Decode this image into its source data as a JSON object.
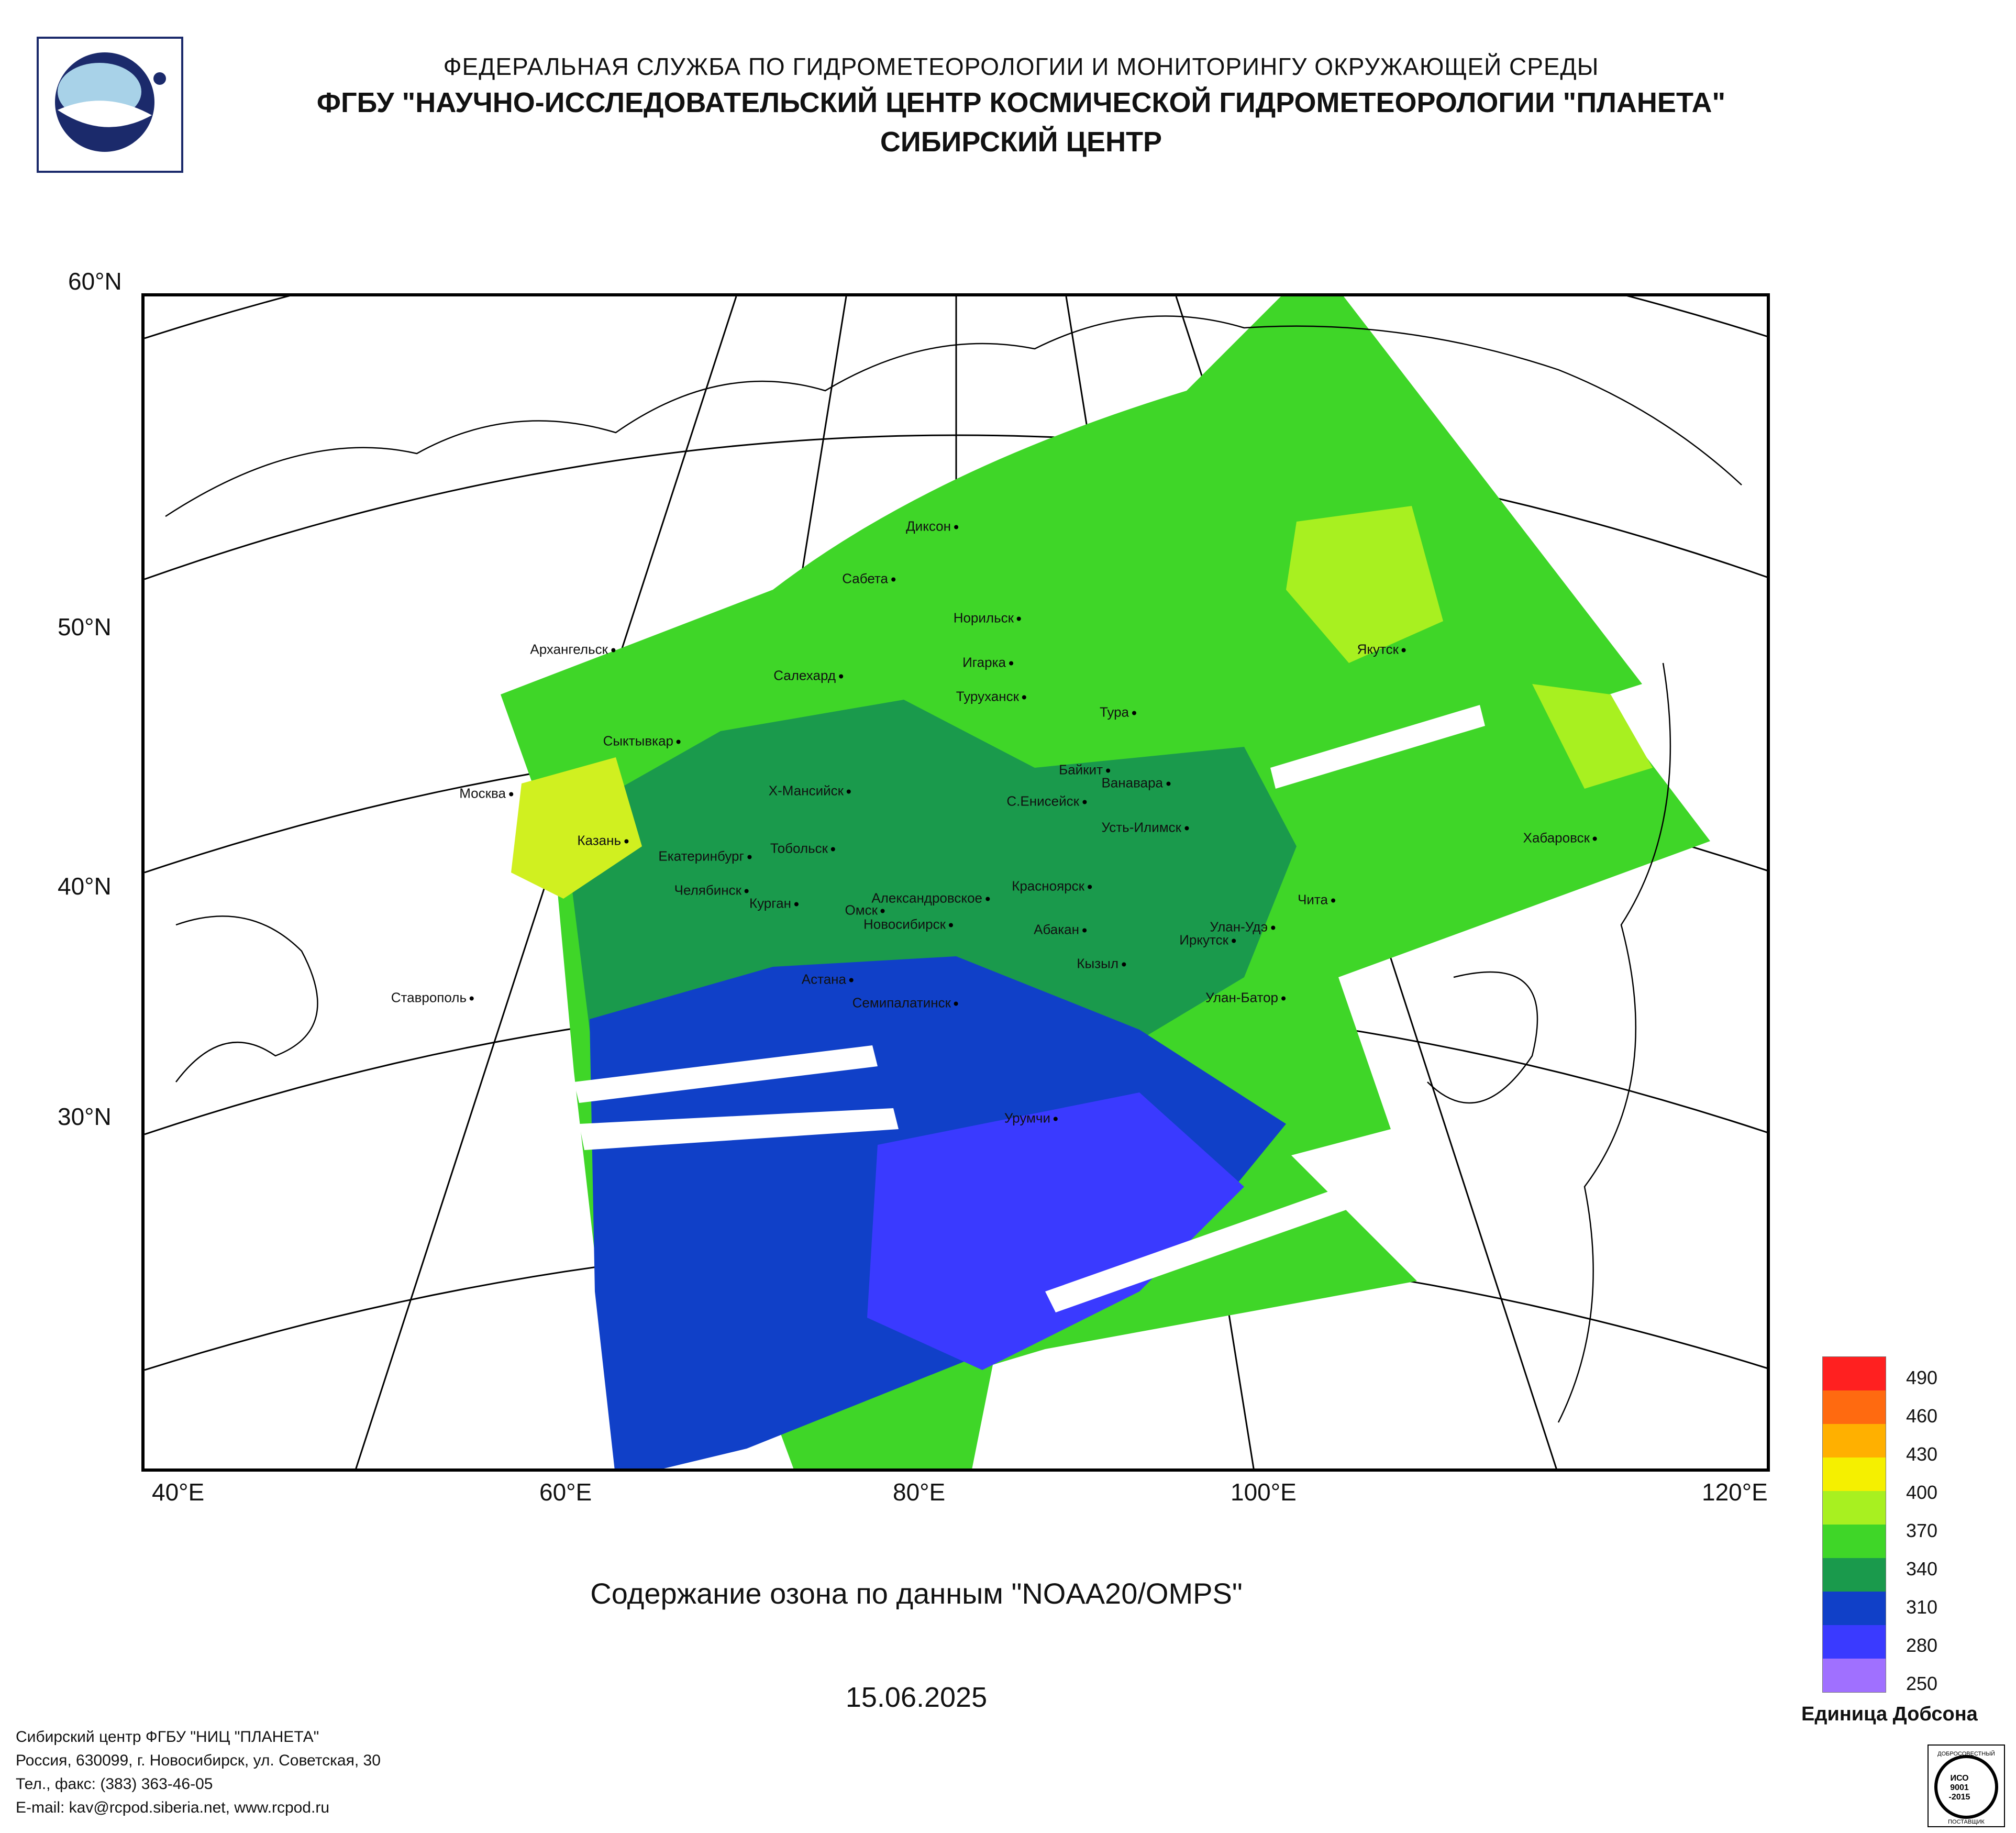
{
  "header": {
    "line1": "ФЕДЕРАЛЬНАЯ СЛУЖБА ПО ГИДРОМЕТЕОРОЛОГИИ И МОНИТОРИНГУ ОКРУЖАЮЩЕЙ СРЕДЫ",
    "line2": "ФГБУ \"НАУЧНО-ИССЛЕДОВАТЕЛЬСКИЙ ЦЕНТР КОСМИЧЕСКОЙ ГИДРОМЕТЕОРОЛОГИИ \"ПЛАНЕТА\"",
    "line3": "СИБИРСКИЙ ЦЕНТР"
  },
  "map": {
    "lat_labels": [
      "60°N",
      "50°N",
      "40°N",
      "30°N"
    ],
    "lon_labels": [
      "40°E",
      "60°E",
      "80°E",
      "100°E",
      "120°E"
    ],
    "cities": [
      "Диксон",
      "Сабета",
      "Норильск",
      "Архангельск",
      "Салехард",
      "Игарка",
      "Туруханск",
      "Якутск",
      "Тура",
      "Сыктывкар",
      "Байкит",
      "Ванавара",
      "Москва",
      "Х-Мансийск",
      "С.Енисейск",
      "Усть-Илимск",
      "Хабаровск",
      "Казань",
      "Тобольск",
      "Екатеринбург",
      "Челябинск",
      "Александровское",
      "Красноярск",
      "Чита",
      "Курган",
      "Омск",
      "Новосибирск",
      "Абакан",
      "Улан-Удэ",
      "Иркутск",
      "Кызыл",
      "Астана",
      "Семипалатинск",
      "Улан-Батор",
      "Ставрополь",
      "Урумчи"
    ]
  },
  "title": "Содержание озона по данным \"NOAA20/OMPS\"",
  "date": "15.06.2025",
  "legend": {
    "ticks": [
      "490",
      "460",
      "430",
      "400",
      "370",
      "340",
      "310",
      "280",
      "250"
    ],
    "unit": "Единица Добсона",
    "colors": [
      "#ff2020",
      "#ff6a10",
      "#ffb000",
      "#f5f000",
      "#a8f020",
      "#3fd628",
      "#1a9a4c",
      "#1040c8",
      "#3a3aff",
      "#a070ff"
    ]
  },
  "footer": {
    "line1": "Сибирский центр ФГБУ \"НИЦ \"ПЛАНЕТА\"",
    "line2": "Россия, 630099, г. Новосибирск, ул. Советская, 30",
    "line3": "Тел., факс: (383) 363-46-05",
    "line4": "E-mail: kav@rcpod.siberia.net, www.rcpod.ru"
  },
  "iso": {
    "text1": "ДОБРОСОВЕСТНЫЙ",
    "text2": "ИСО",
    "text3": "9001",
    "text4": "-2015",
    "text5": "ПОСТАВЩИК"
  }
}
